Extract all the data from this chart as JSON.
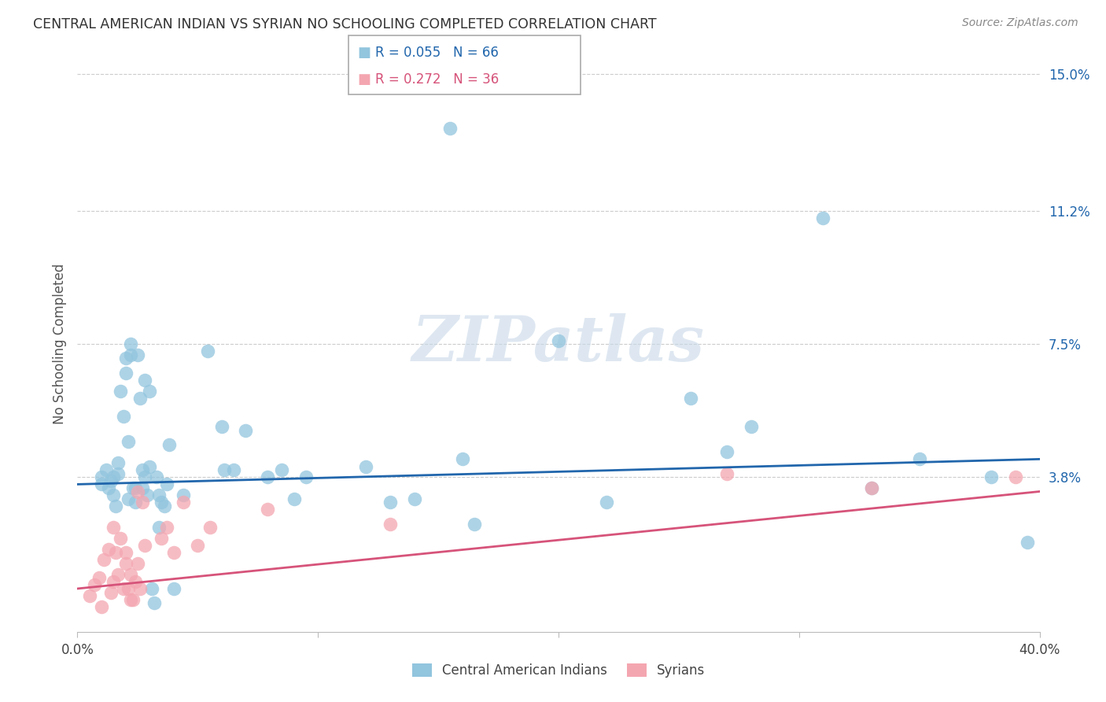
{
  "title": "CENTRAL AMERICAN INDIAN VS SYRIAN NO SCHOOLING COMPLETED CORRELATION CHART",
  "source": "Source: ZipAtlas.com",
  "ylabel": "No Schooling Completed",
  "xlim": [
    0.0,
    0.4
  ],
  "ylim": [
    -0.005,
    0.155
  ],
  "yticks_right": [
    0.038,
    0.075,
    0.112,
    0.15
  ],
  "yticklabels_right": [
    "3.8%",
    "7.5%",
    "11.2%",
    "15.0%"
  ],
  "legend_blue_r": "0.055",
  "legend_blue_n": "66",
  "legend_pink_r": "0.272",
  "legend_pink_n": "36",
  "blue_color": "#92c5de",
  "pink_color": "#f4a6b0",
  "trendline_blue_color": "#2166ac",
  "trendline_pink_color": "#d6537a",
  "watermark": "ZIPatlas",
  "blue_trendline": [
    [
      0.0,
      0.036
    ],
    [
      0.4,
      0.043
    ]
  ],
  "pink_trendline": [
    [
      0.0,
      0.007
    ],
    [
      0.4,
      0.034
    ]
  ],
  "blue_scatter": [
    [
      0.01,
      0.038
    ],
    [
      0.01,
      0.036
    ],
    [
      0.012,
      0.04
    ],
    [
      0.013,
      0.035
    ],
    [
      0.014,
      0.037
    ],
    [
      0.015,
      0.033
    ],
    [
      0.015,
      0.038
    ],
    [
      0.016,
      0.03
    ],
    [
      0.017,
      0.042
    ],
    [
      0.017,
      0.039
    ],
    [
      0.018,
      0.062
    ],
    [
      0.019,
      0.055
    ],
    [
      0.02,
      0.071
    ],
    [
      0.02,
      0.067
    ],
    [
      0.021,
      0.032
    ],
    [
      0.021,
      0.048
    ],
    [
      0.022,
      0.072
    ],
    [
      0.022,
      0.075
    ],
    [
      0.023,
      0.035
    ],
    [
      0.024,
      0.031
    ],
    [
      0.024,
      0.035
    ],
    [
      0.025,
      0.072
    ],
    [
      0.026,
      0.06
    ],
    [
      0.027,
      0.04
    ],
    [
      0.027,
      0.035
    ],
    [
      0.028,
      0.038
    ],
    [
      0.028,
      0.065
    ],
    [
      0.029,
      0.033
    ],
    [
      0.03,
      0.041
    ],
    [
      0.03,
      0.062
    ],
    [
      0.031,
      0.007
    ],
    [
      0.032,
      0.003
    ],
    [
      0.033,
      0.038
    ],
    [
      0.034,
      0.033
    ],
    [
      0.034,
      0.024
    ],
    [
      0.035,
      0.031
    ],
    [
      0.036,
      0.03
    ],
    [
      0.037,
      0.036
    ],
    [
      0.038,
      0.047
    ],
    [
      0.04,
      0.007
    ],
    [
      0.044,
      0.033
    ],
    [
      0.054,
      0.073
    ],
    [
      0.06,
      0.052
    ],
    [
      0.061,
      0.04
    ],
    [
      0.065,
      0.04
    ],
    [
      0.07,
      0.051
    ],
    [
      0.079,
      0.038
    ],
    [
      0.085,
      0.04
    ],
    [
      0.09,
      0.032
    ],
    [
      0.095,
      0.038
    ],
    [
      0.12,
      0.041
    ],
    [
      0.13,
      0.031
    ],
    [
      0.14,
      0.032
    ],
    [
      0.155,
      0.135
    ],
    [
      0.16,
      0.043
    ],
    [
      0.165,
      0.025
    ],
    [
      0.2,
      0.076
    ],
    [
      0.22,
      0.031
    ],
    [
      0.255,
      0.06
    ],
    [
      0.27,
      0.045
    ],
    [
      0.28,
      0.052
    ],
    [
      0.31,
      0.11
    ],
    [
      0.33,
      0.035
    ],
    [
      0.35,
      0.043
    ],
    [
      0.38,
      0.038
    ],
    [
      0.395,
      0.02
    ]
  ],
  "pink_scatter": [
    [
      0.005,
      0.005
    ],
    [
      0.007,
      0.008
    ],
    [
      0.009,
      0.01
    ],
    [
      0.01,
      0.002
    ],
    [
      0.011,
      0.015
    ],
    [
      0.013,
      0.018
    ],
    [
      0.014,
      0.006
    ],
    [
      0.015,
      0.009
    ],
    [
      0.015,
      0.024
    ],
    [
      0.016,
      0.017
    ],
    [
      0.017,
      0.011
    ],
    [
      0.018,
      0.021
    ],
    [
      0.019,
      0.007
    ],
    [
      0.02,
      0.014
    ],
    [
      0.02,
      0.017
    ],
    [
      0.021,
      0.007
    ],
    [
      0.022,
      0.004
    ],
    [
      0.022,
      0.011
    ],
    [
      0.023,
      0.004
    ],
    [
      0.024,
      0.009
    ],
    [
      0.025,
      0.014
    ],
    [
      0.025,
      0.034
    ],
    [
      0.026,
      0.007
    ],
    [
      0.027,
      0.031
    ],
    [
      0.028,
      0.019
    ],
    [
      0.035,
      0.021
    ],
    [
      0.037,
      0.024
    ],
    [
      0.04,
      0.017
    ],
    [
      0.044,
      0.031
    ],
    [
      0.05,
      0.019
    ],
    [
      0.055,
      0.024
    ],
    [
      0.079,
      0.029
    ],
    [
      0.13,
      0.025
    ],
    [
      0.27,
      0.039
    ],
    [
      0.33,
      0.035
    ],
    [
      0.39,
      0.038
    ]
  ]
}
